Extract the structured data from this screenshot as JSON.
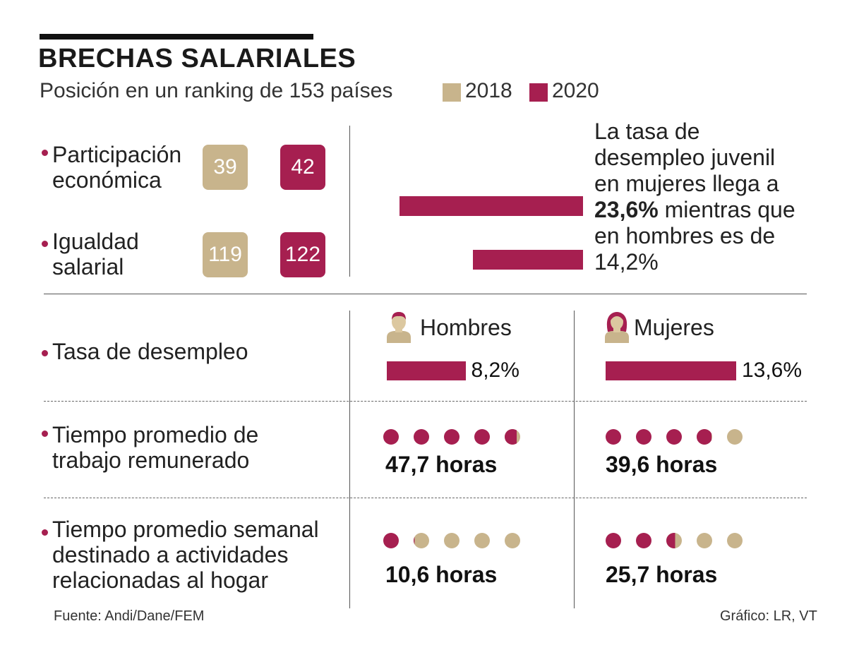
{
  "header": {
    "title": "BRECHAS SALARIALES",
    "subtitle": "Posición en un ranking de 153 países",
    "legend": [
      {
        "label": "2018",
        "color": "#c8b48c"
      },
      {
        "label": "2020",
        "color": "#a61f50"
      }
    ]
  },
  "ranking": {
    "rows": [
      {
        "label_line1": "Participación",
        "label_line2": "económica",
        "v2018": "39",
        "v2020": "42"
      },
      {
        "label_line1": "Igualdad",
        "label_line2": "salarial",
        "v2018": "119",
        "v2020": "122"
      }
    ]
  },
  "youth_note": {
    "line1": "La tasa de",
    "line2": "desempleo juvenil",
    "line3": "en mujeres llega a",
    "women_value": "23,6%",
    "line4_rest": " mientras que",
    "line5": "en hombres es de",
    "men_value": "14,2%"
  },
  "genders": {
    "men": "Hombres",
    "women": "Mujeres"
  },
  "unemployment": {
    "label": "Tasa de desempleo",
    "men_value": "8,2%",
    "women_value": "13,6%"
  },
  "paid_work": {
    "label_line1": "Tiempo promedio de",
    "label_line2": "trabajo remunerado",
    "men_value": "47,7 horas",
    "women_value": "39,6 horas"
  },
  "home_work": {
    "label_line1": "Tiempo promedio semanal",
    "label_line2": "destinado a actividades",
    "label_line3": "relacionadas al hogar",
    "men_value": "10,6 horas",
    "women_value": "25,7 horas"
  },
  "footer": {
    "source": "Fuente: Andi/Dane/FEM",
    "credit": "Gráfico: LR, VT"
  },
  "colors": {
    "accent": "#a61f50",
    "beige": "#c8b48c"
  },
  "chart_data": [
    {
      "type": "table",
      "title": "Posición en un ranking de 153 países",
      "categories": [
        "Participación económica",
        "Igualdad salarial"
      ],
      "series": [
        {
          "name": "2018",
          "values": [
            39,
            119
          ]
        },
        {
          "name": "2020",
          "values": [
            42,
            122
          ]
        }
      ]
    },
    {
      "type": "bar",
      "title": "Desempleo juvenil",
      "categories": [
        "Mujeres",
        "Hombres"
      ],
      "values": [
        23.6,
        14.2
      ],
      "ylabel": "%"
    },
    {
      "type": "bar",
      "title": "Tasa de desempleo",
      "categories": [
        "Hombres",
        "Mujeres"
      ],
      "values": [
        8.2,
        13.6
      ],
      "ylabel": "%"
    },
    {
      "type": "table",
      "title": "Tiempo promedio de trabajo remunerado (horas)",
      "categories": [
        "Hombres",
        "Mujeres"
      ],
      "values": [
        47.7,
        39.6
      ],
      "dot_units": 10,
      "dots": 5
    },
    {
      "type": "table",
      "title": "Tiempo promedio semanal destinado a actividades relacionadas al hogar (horas)",
      "categories": [
        "Hombres",
        "Mujeres"
      ],
      "values": [
        10.6,
        25.7
      ],
      "dot_units": 10,
      "dots": 5
    }
  ]
}
